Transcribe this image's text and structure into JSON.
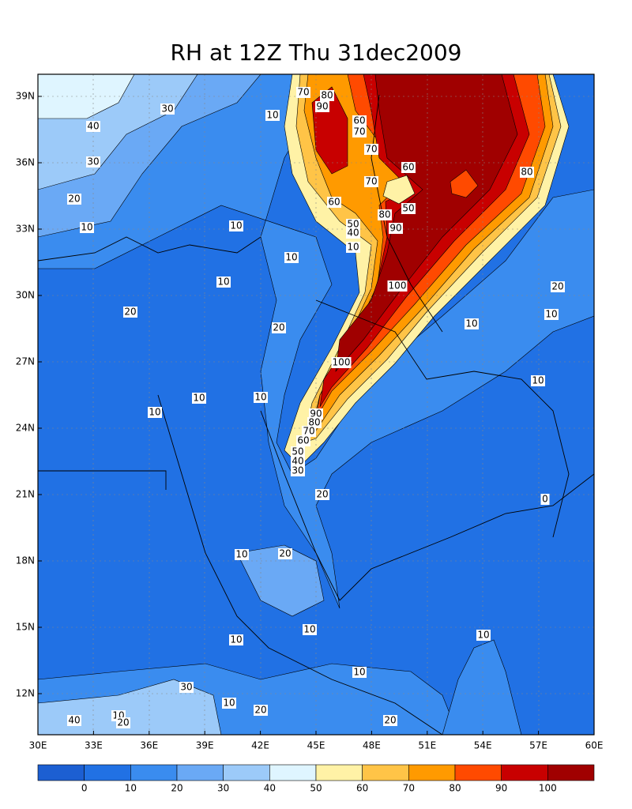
{
  "title": "RH at 12Z Thu 31dec2009",
  "lat_labels": [
    "39N",
    "36N",
    "33N",
    "30N",
    "27N",
    "24N",
    "21N",
    "18N",
    "15N",
    "12N"
  ],
  "lon_labels": [
    "30E",
    "33E",
    "36E",
    "39E",
    "42E",
    "45E",
    "48E",
    "51E",
    "54E",
    "57E",
    "60E"
  ],
  "colorbar": {
    "colors": [
      "#1c5fd2",
      "#2171e4",
      "#3a8cef",
      "#6aa9f5",
      "#9ccaf9",
      "#dff5ff",
      "#fff2a6",
      "#ffc447",
      "#ff9a00",
      "#ff4a00",
      "#c80000",
      "#a00000"
    ],
    "labels": [
      "0",
      "10",
      "20",
      "30",
      "40",
      "50",
      "60",
      "70",
      "80",
      "90",
      "100"
    ]
  },
  "contour_labels": [
    "70",
    "80",
    "90",
    "60",
    "70",
    "70",
    "60",
    "70",
    "50",
    "80",
    "60",
    "50",
    "40",
    "80",
    "90",
    "10",
    "100",
    "100",
    "90",
    "80",
    "70",
    "60",
    "50",
    "40",
    "30",
    "20",
    "10",
    "30",
    "40",
    "30",
    "20",
    "10",
    "10",
    "10",
    "10",
    "20",
    "10",
    "10",
    "20",
    "20",
    "10",
    "10",
    "10",
    "10",
    "0",
    "10",
    "20",
    "10",
    "10",
    "10",
    "10",
    "30",
    "10",
    "20",
    "40",
    "10",
    "20",
    "20"
  ]
}
